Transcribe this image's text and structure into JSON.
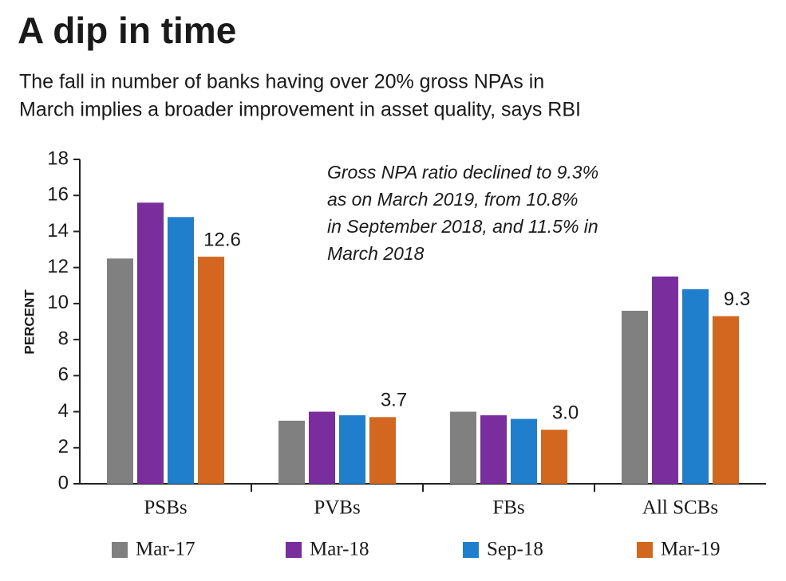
{
  "chart_data": {
    "type": "bar",
    "title": "A dip in time",
    "subtitle": [
      "The fall in number of banks having over 20% gross NPAs in",
      "March implies a broader improvement in asset quality, says RBI"
    ],
    "y_label": "PERCENT",
    "annotation": [
      "Gross NPA ratio declined to 9.3%",
      "as on March 2019, from  10.8%",
      "in September 2018, and 11.5% in",
      "March 2018"
    ],
    "categories": [
      "PSBs",
      "PVBs",
      "FBs",
      "All SCBs"
    ],
    "series": [
      {
        "name": "Mar-17",
        "color": "#808080",
        "values": [
          12.5,
          3.5,
          4.0,
          9.6
        ]
      },
      {
        "name": "Mar-18",
        "color": "#7a2e9e",
        "values": [
          15.6,
          4.0,
          3.8,
          11.5
        ]
      },
      {
        "name": "Sep-18",
        "color": "#1f7fcc",
        "values": [
          14.8,
          3.8,
          3.6,
          10.8
        ]
      },
      {
        "name": "Mar-19",
        "color": "#d4671f",
        "values": [
          12.6,
          3.7,
          3.0,
          9.3
        ],
        "value_labels": [
          "12.6",
          "3.7",
          "3.0",
          "9.3"
        ]
      }
    ],
    "ylim": [
      0,
      18
    ],
    "yticks": [
      0,
      2,
      4,
      6,
      8,
      10,
      12,
      14,
      16,
      18
    ],
    "legend": "bottom"
  }
}
